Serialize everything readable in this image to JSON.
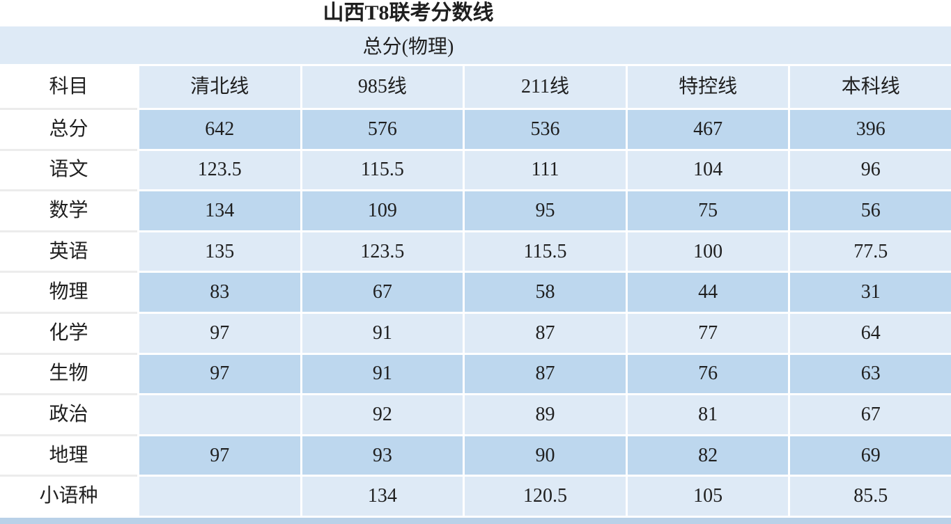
{
  "chart_data": {
    "type": "table",
    "title": "山西T8联考分数线",
    "subtitle": "总分(物理)",
    "corner_header": "科目",
    "column_headers": [
      "清北线",
      "985线",
      "211线",
      "特控线",
      "本科线"
    ],
    "rows": [
      {
        "label": "总分",
        "values": [
          "642",
          "576",
          "536",
          "467",
          "396"
        ]
      },
      {
        "label": "语文",
        "values": [
          "123.5",
          "115.5",
          "111",
          "104",
          "96"
        ]
      },
      {
        "label": "数学",
        "values": [
          "134",
          "109",
          "95",
          "75",
          "56"
        ]
      },
      {
        "label": "英语",
        "values": [
          "135",
          "123.5",
          "115.5",
          "100",
          "77.5"
        ]
      },
      {
        "label": "物理",
        "values": [
          "83",
          "67",
          "58",
          "44",
          "31"
        ]
      },
      {
        "label": "化学",
        "values": [
          "97",
          "91",
          "87",
          "77",
          "64"
        ]
      },
      {
        "label": "生物",
        "values": [
          "97",
          "91",
          "87",
          "76",
          "63"
        ]
      },
      {
        "label": "政治",
        "values": [
          "",
          "92",
          "89",
          "81",
          "67"
        ]
      },
      {
        "label": "地理",
        "values": [
          "97",
          "93",
          "90",
          "82",
          "69"
        ]
      },
      {
        "label": "小语种",
        "values": [
          "",
          "134",
          "120.5",
          "105",
          "85.5"
        ]
      }
    ]
  },
  "colors": {
    "row_dark": "#BDD7EE",
    "row_light": "#DEEAF6",
    "header_fill": "#DEEAF6",
    "label_separator": "#ECECEC",
    "bottom_strip": "#B9D1E8",
    "text": "#1F1F1F"
  }
}
